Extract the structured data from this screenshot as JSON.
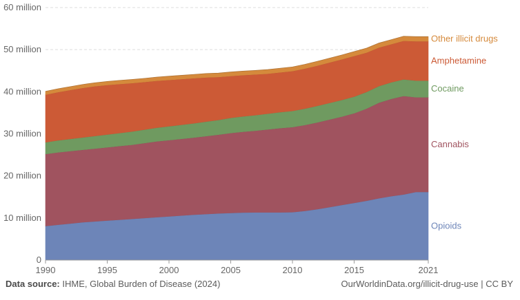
{
  "chart_data": {
    "type": "area",
    "stacked": true,
    "title": "",
    "xlabel": "",
    "ylabel": "",
    "xlim": [
      1990,
      2021
    ],
    "ylim": [
      0,
      60000000
    ],
    "grid": true,
    "legend": "right-side labels",
    "x_ticks": [
      1990,
      1995,
      2000,
      2005,
      2010,
      2015,
      2021
    ],
    "x_tick_labels": [
      "1990",
      "1995",
      "2000",
      "2005",
      "2010",
      "2015",
      "2021"
    ],
    "y_ticks": [
      0,
      10000000,
      20000000,
      30000000,
      40000000,
      50000000,
      60000000
    ],
    "y_tick_labels": [
      "0",
      "10 million",
      "20 million",
      "30 million",
      "40 million",
      "50 million",
      "60 million"
    ],
    "x": [
      1990,
      1991,
      1992,
      1993,
      1994,
      1995,
      1996,
      1997,
      1998,
      1999,
      2000,
      2001,
      2002,
      2003,
      2004,
      2005,
      2006,
      2007,
      2008,
      2009,
      2010,
      2011,
      2012,
      2013,
      2014,
      2015,
      2016,
      2017,
      2018,
      2019,
      2020,
      2021
    ],
    "series": [
      {
        "name": "Opioids",
        "color": "#6d85b8",
        "values": [
          8100000,
          8400000,
          8700000,
          9000000,
          9200000,
          9400000,
          9600000,
          9800000,
          10000000,
          10200000,
          10400000,
          10600000,
          10800000,
          10950000,
          11100000,
          11200000,
          11300000,
          11350000,
          11350000,
          11350000,
          11400000,
          11700000,
          12100000,
          12600000,
          13100000,
          13600000,
          14100000,
          14700000,
          15200000,
          15600000,
          16200000,
          16200000
        ]
      },
      {
        "name": "Cannabis",
        "color": "#a0535f",
        "values": [
          17100000,
          17200000,
          17200000,
          17200000,
          17300000,
          17400000,
          17500000,
          17600000,
          17800000,
          18000000,
          18100000,
          18200000,
          18300000,
          18500000,
          18700000,
          19000000,
          19200000,
          19400000,
          19700000,
          20000000,
          20200000,
          20400000,
          20600000,
          20800000,
          21000000,
          21300000,
          21900000,
          22700000,
          23100000,
          23400000,
          22500000,
          22500000
        ]
      },
      {
        "name": "Cocaine",
        "color": "#6f9a60",
        "values": [
          2800000,
          2850000,
          2900000,
          2950000,
          3000000,
          3050000,
          3100000,
          3150000,
          3200000,
          3250000,
          3300000,
          3350000,
          3400000,
          3450000,
          3500000,
          3600000,
          3650000,
          3700000,
          3750000,
          3800000,
          3850000,
          3900000,
          3950000,
          3950000,
          3950000,
          3950000,
          3950000,
          3950000,
          3950000,
          3950000,
          3950000,
          3950000
        ]
      },
      {
        "name": "Amphetamine",
        "color": "#cc5a36",
        "values": [
          11300000,
          11450000,
          11600000,
          11750000,
          11800000,
          11750000,
          11650000,
          11500000,
          11300000,
          11150000,
          11000000,
          10850000,
          10700000,
          10500000,
          10200000,
          9950000,
          9800000,
          9650000,
          9500000,
          9450000,
          9450000,
          9500000,
          9550000,
          9600000,
          9650000,
          9650000,
          9350000,
          9150000,
          9050000,
          9150000,
          9350000,
          9350000
        ]
      },
      {
        "name": "Other illicit drugs",
        "color": "#d58a3c",
        "values": [
          800000,
          810000,
          820000,
          830000,
          840000,
          850000,
          860000,
          870000,
          880000,
          890000,
          900000,
          910000,
          920000,
          930000,
          940000,
          950000,
          960000,
          970000,
          980000,
          990000,
          1000000,
          1010000,
          1020000,
          1030000,
          1040000,
          1050000,
          1060000,
          1070000,
          1080000,
          1090000,
          1100000,
          1100000
        ]
      }
    ]
  },
  "footer": {
    "source_label": "Data source:",
    "source_text": " IHME, Global Burden of Disease (2024)",
    "credit": "OurWorldinData.org/illicit-drug-use | CC BY"
  }
}
